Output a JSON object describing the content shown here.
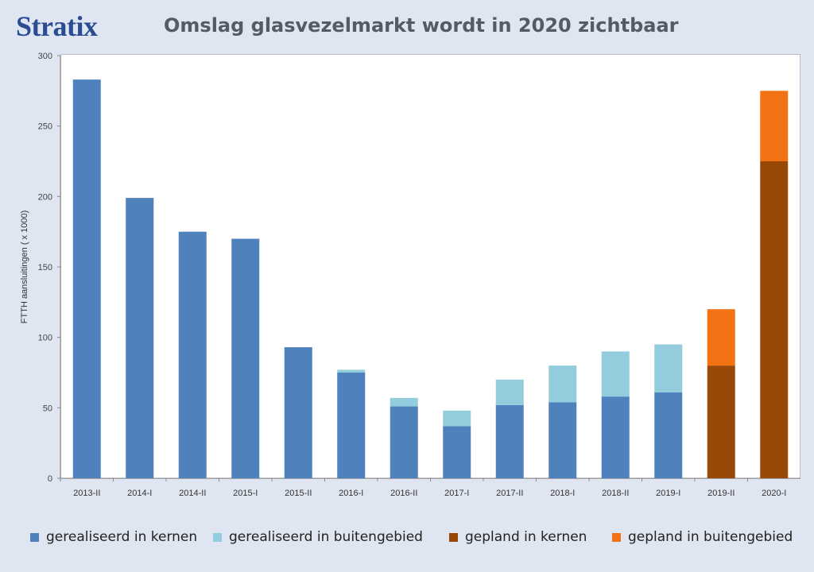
{
  "header": {
    "logo": "Stratix",
    "title": "Omslag glasvezelmarkt wordt in 2020 zichtbaar"
  },
  "chart_data": {
    "type": "bar",
    "stacked": true,
    "title": "Omslag glasvezelmarkt wordt in 2020 zichtbaar",
    "xlabel": "",
    "ylabel": "FTTH aansluitingen ( x 1000)",
    "ylim": [
      0,
      300
    ],
    "yticks": [
      0,
      50,
      100,
      150,
      200,
      250,
      300
    ],
    "grid": false,
    "legend_position": "bottom",
    "categories": [
      "2013-II",
      "2014-I",
      "2014-II",
      "2015-I",
      "2015-II",
      "2016-I",
      "2016-II",
      "2017-I",
      "2017-II",
      "2018-I",
      "2018-II",
      "2019-I",
      "2019-II",
      "2020-I"
    ],
    "series": [
      {
        "name": "gerealiseerd in kernen",
        "color": "#4f81bd",
        "values": [
          283,
          199,
          175,
          170,
          93,
          75,
          51,
          37,
          52,
          54,
          58,
          61,
          0,
          0
        ]
      },
      {
        "name": "gerealiseerd in buitengebied",
        "color": "#93cddd",
        "values": [
          0,
          0,
          0,
          0,
          0,
          2,
          6,
          11,
          18,
          26,
          32,
          34,
          0,
          0
        ]
      },
      {
        "name": "gepland in kernen",
        "color": "#984807",
        "values": [
          0,
          0,
          0,
          0,
          0,
          0,
          0,
          0,
          0,
          0,
          0,
          0,
          80,
          225
        ]
      },
      {
        "name": "gepland in buitengebied",
        "color": "#f27214",
        "values": [
          0,
          0,
          0,
          0,
          0,
          0,
          0,
          0,
          0,
          0,
          0,
          0,
          40,
          50
        ]
      }
    ]
  }
}
